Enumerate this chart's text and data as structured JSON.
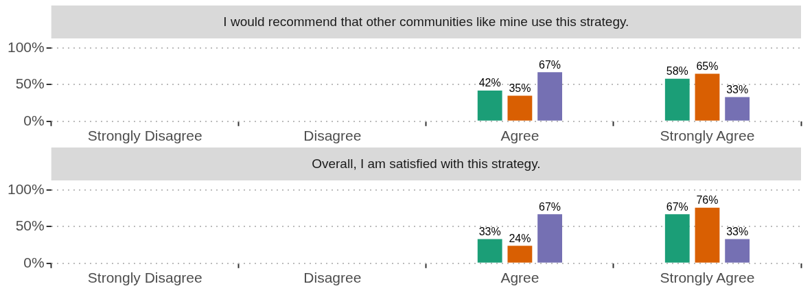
{
  "chart_data": [
    {
      "type": "bar",
      "title": "I would recommend that other communities like mine use this strategy.",
      "categories": [
        "Strongly Disagree",
        "Disagree",
        "Agree",
        "Strongly Agree"
      ],
      "series": [
        {
          "color": "#1b9e77",
          "values": [
            null,
            null,
            42,
            58
          ],
          "value_labels": [
            null,
            null,
            "42%",
            "58%"
          ]
        },
        {
          "color": "#d95f02",
          "values": [
            null,
            null,
            35,
            65
          ],
          "value_labels": [
            null,
            null,
            "35%",
            "65%"
          ]
        },
        {
          "color": "#7570b3",
          "values": [
            null,
            null,
            67,
            33
          ],
          "value_labels": [
            null,
            null,
            "67%",
            "33%"
          ]
        }
      ],
      "ylim": [
        0,
        100
      ],
      "yticks": [
        {
          "value": 0,
          "label": "0%"
        },
        {
          "value": 50,
          "label": "50%"
        },
        {
          "value": 100,
          "label": "100%"
        }
      ],
      "grid": "y"
    },
    {
      "type": "bar",
      "title": "Overall, I am satisfied with this strategy.",
      "categories": [
        "Strongly Disagree",
        "Disagree",
        "Agree",
        "Strongly Agree"
      ],
      "series": [
        {
          "color": "#1b9e77",
          "values": [
            null,
            null,
            33,
            67
          ],
          "value_labels": [
            null,
            null,
            "33%",
            "67%"
          ]
        },
        {
          "color": "#d95f02",
          "values": [
            null,
            null,
            24,
            76
          ],
          "value_labels": [
            null,
            null,
            "24%",
            "76%"
          ]
        },
        {
          "color": "#7570b3",
          "values": [
            null,
            null,
            67,
            33
          ],
          "value_labels": [
            null,
            null,
            "67%",
            "33%"
          ]
        }
      ],
      "ylim": [
        0,
        100
      ],
      "yticks": [
        {
          "value": 0,
          "label": "0%"
        },
        {
          "value": 50,
          "label": "50%"
        },
        {
          "value": 100,
          "label": "100%"
        }
      ],
      "grid": "y"
    }
  ]
}
